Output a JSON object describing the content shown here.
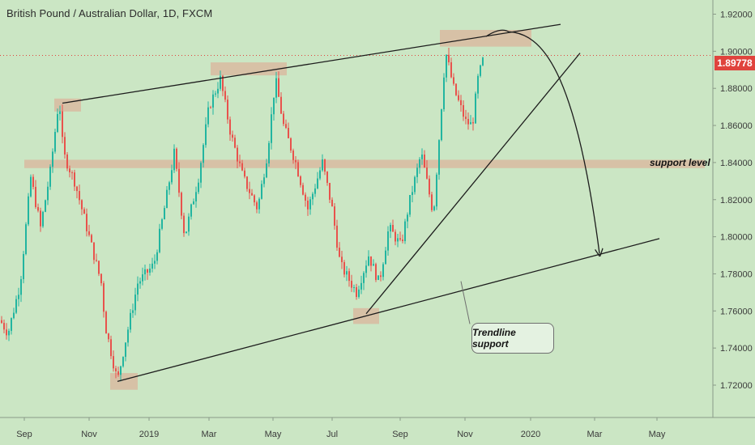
{
  "header": {
    "title": "British Pound / Australian Dollar, 1D, FXCM"
  },
  "price_tag": {
    "value": "1.89778",
    "color": "#e0433d"
  },
  "annotations": {
    "support_label": "support level",
    "trendline_label": "Trendline support"
  },
  "colors": {
    "background": "#cbe6c4",
    "up": "#22b5a0",
    "down": "#e8524c",
    "zone": "#d9b8a0",
    "line": "#1c1c1c"
  },
  "chart_data": {
    "type": "candlestick",
    "title": "British Pound / Australian Dollar, 1D, FXCM",
    "instrument": "GBP/AUD",
    "timeframe": "1D",
    "x_ticks": [
      "Sep",
      "Nov",
      "2019",
      "Mar",
      "May",
      "Jul",
      "Sep",
      "Nov",
      "2020",
      "Mar",
      "May"
    ],
    "y_ticks": [
      "1.92000",
      "1.90000",
      "1.88000",
      "1.86000",
      "1.84000",
      "1.82000",
      "1.80000",
      "1.78000",
      "1.76000",
      "1.74000",
      "1.72000"
    ],
    "ylim": [
      1.71,
      1.925
    ],
    "last_price": 1.89778,
    "trend_path": [
      [
        0,
        1.755
      ],
      [
        10,
        1.748
      ],
      [
        25,
        1.775
      ],
      [
        38,
        1.832
      ],
      [
        50,
        1.805
      ],
      [
        62,
        1.835
      ],
      [
        73,
        1.875
      ],
      [
        78,
        1.845
      ],
      [
        92,
        1.83
      ],
      [
        110,
        1.8
      ],
      [
        125,
        1.775
      ],
      [
        130,
        1.752
      ],
      [
        145,
        1.722
      ],
      [
        153,
        1.74
      ],
      [
        170,
        1.775
      ],
      [
        190,
        1.785
      ],
      [
        205,
        1.82
      ],
      [
        215,
        1.845
      ],
      [
        228,
        1.8
      ],
      [
        245,
        1.832
      ],
      [
        258,
        1.87
      ],
      [
        272,
        1.885
      ],
      [
        285,
        1.855
      ],
      [
        300,
        1.832
      ],
      [
        318,
        1.815
      ],
      [
        330,
        1.845
      ],
      [
        340,
        1.885
      ],
      [
        350,
        1.86
      ],
      [
        365,
        1.84
      ],
      [
        380,
        1.815
      ],
      [
        398,
        1.84
      ],
      [
        410,
        1.815
      ],
      [
        420,
        1.785
      ],
      [
        440,
        1.77
      ],
      [
        455,
        1.79
      ],
      [
        468,
        1.775
      ],
      [
        480,
        1.805
      ],
      [
        495,
        1.795
      ],
      [
        505,
        1.818
      ],
      [
        520,
        1.845
      ],
      [
        535,
        1.812
      ],
      [
        550,
        1.9
      ],
      [
        560,
        1.88
      ],
      [
        575,
        1.862
      ],
      [
        583,
        1.86
      ],
      [
        590,
        1.885
      ],
      [
        598,
        1.898
      ]
    ],
    "zones": [
      {
        "x": [
          67,
          100
        ],
        "y": [
          1.8675,
          1.8745
        ]
      },
      {
        "x": [
          260,
          354
        ],
        "y": [
          1.887,
          1.894
        ]
      },
      {
        "x": [
          543,
          656
        ],
        "y": [
          1.9025,
          1.9115
        ]
      },
      {
        "x": [
          30,
          870
        ],
        "y": [
          1.837,
          1.8415
        ]
      },
      {
        "x": [
          436,
          468
        ],
        "y": [
          1.753,
          1.7615
        ]
      },
      {
        "x": [
          136,
          170
        ],
        "y": [
          1.7175,
          1.7265
        ]
      }
    ],
    "lines": [
      {
        "from": [
          77,
          1.872
        ],
        "to": [
          692,
          1.9145
        ]
      },
      {
        "from": [
          145,
          1.722
        ],
        "to": [
          814,
          1.799
        ]
      },
      {
        "from": [
          452,
          1.7585
        ],
        "to": [
          716,
          1.899
        ]
      },
      {
        "from": [
          569,
          1.776
        ],
        "to": [
          580,
          1.753
        ]
      }
    ],
    "curve": {
      "start": [
        600,
        1.908
      ],
      "peak": [
        628,
        1.9105
      ],
      "end": [
        740,
        1.791
      ]
    }
  }
}
